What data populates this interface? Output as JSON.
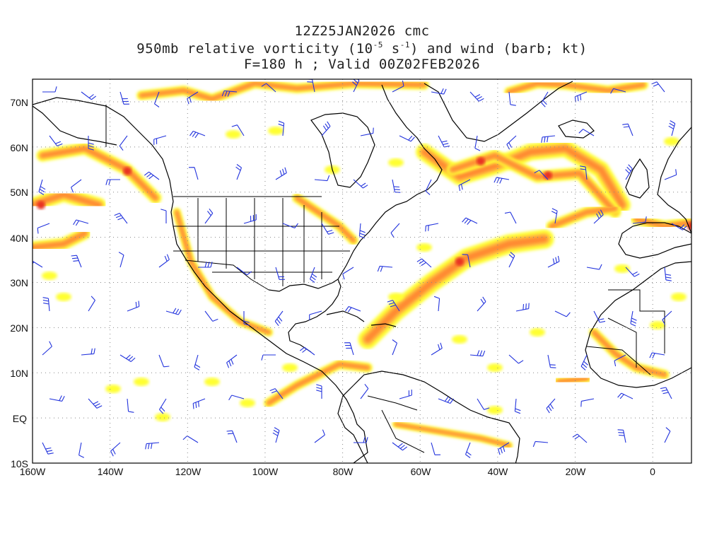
{
  "title": {
    "line1": "12Z25JAN2026 cmc",
    "line2_pre": "950mb relative vorticity (10",
    "line2_exp1": "-5",
    "line2_mid": " s",
    "line2_exp2": "-1",
    "line2_post": ") and wind (barb; kt)",
    "line3": "F=180 h ; Valid 00Z02FEB2026"
  },
  "map": {
    "lon_range": [
      -160,
      10
    ],
    "lat_range": [
      -10,
      75
    ],
    "lat_labels": [
      "70N",
      "60N",
      "50N",
      "40N",
      "30N",
      "20N",
      "10N",
      "EQ",
      "10S"
    ],
    "lon_labels": [
      "160W",
      "140W",
      "120W",
      "100W",
      "80W",
      "60W",
      "40W",
      "20W",
      "0"
    ],
    "colors": {
      "vort_low": "#ffff33",
      "vort_mid": "#ffc040",
      "vort_high": "#ff8a30",
      "vort_max": "#e83020",
      "barb": "#2233dd",
      "coast": "#000000",
      "grid": "#888888"
    }
  }
}
